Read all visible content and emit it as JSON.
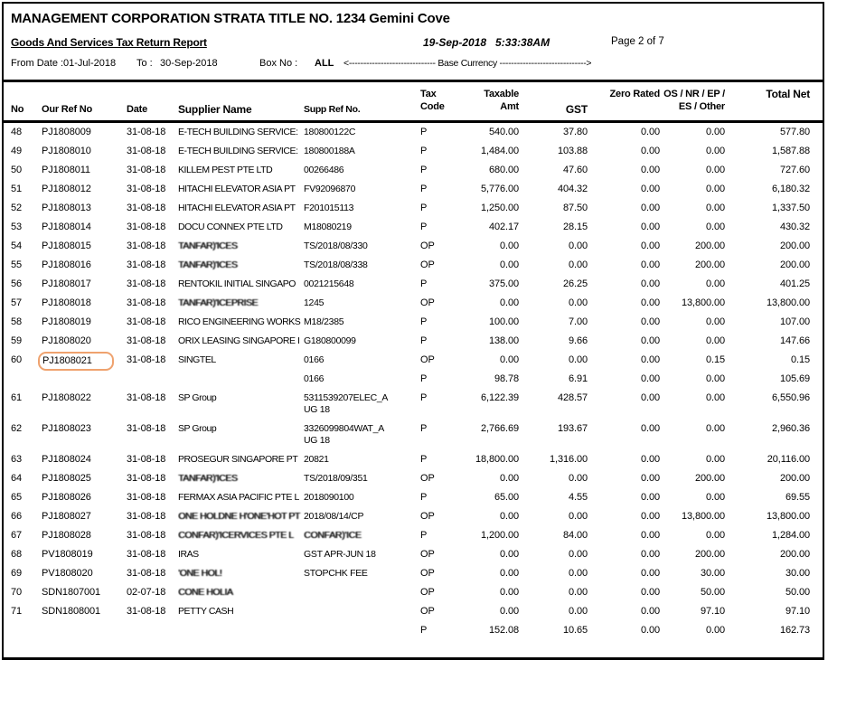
{
  "page": {
    "title": "MANAGEMENT CORPORATION STRATA TITLE NO. 1234 Gemini Cove",
    "report_name": "Goods And Services Tax Return Report",
    "printed_date": "19-Sep-2018",
    "printed_time": "5:33:38AM",
    "page_indicator": "Page 2 of 7",
    "from_label": "From Date :",
    "from_date": "01-Jul-2018",
    "to_label": "To :",
    "to_date": "30-Sep-2018",
    "box_label": "Box No :",
    "box_value": "ALL",
    "base_currency_line": "<------------------------------ Base Currency ------------------------------>"
  },
  "annotations": {
    "highlighted_ref": "PJ1808021",
    "highlight_color": "#efa26e"
  },
  "table": {
    "headers": {
      "no": "No",
      "our_ref": "Our Ref No",
      "date": "Date",
      "supplier": "Supplier Name",
      "supp_ref": "Supp Ref No.",
      "tax": "Tax\nCode",
      "taxable": "Taxable\nAmt",
      "gst": "GST",
      "zero": "Zero Rated",
      "os": "OS / NR / EP /\nES / Other",
      "total": "Total Net"
    },
    "rows": [
      {
        "no": "48",
        "ref": "PJ1808009",
        "date": "31-08-18",
        "supplier": "E-TECH BUILDING SERVICE:",
        "lines": [
          {
            "supp_ref": "180800122C",
            "tax": "P",
            "taxable": "540.00",
            "gst": "37.80",
            "zero": "0.00",
            "os": "0.00",
            "total": "577.80"
          }
        ]
      },
      {
        "no": "49",
        "ref": "PJ1808010",
        "date": "31-08-18",
        "supplier": "E-TECH BUILDING SERVICE:",
        "lines": [
          {
            "supp_ref": "180800188A",
            "tax": "P",
            "taxable": "1,484.00",
            "gst": "103.88",
            "zero": "0.00",
            "os": "0.00",
            "total": "1,587.88"
          }
        ]
      },
      {
        "no": "50",
        "ref": "PJ1808011",
        "date": "31-08-18",
        "supplier": "KILLEM PEST PTE LTD",
        "lines": [
          {
            "supp_ref": "00266486",
            "tax": "P",
            "taxable": "680.00",
            "gst": "47.60",
            "zero": "0.00",
            "os": "0.00",
            "total": "727.60"
          }
        ]
      },
      {
        "no": "51",
        "ref": "PJ1808012",
        "date": "31-08-18",
        "supplier": "HITACHI ELEVATOR ASIA PT",
        "lines": [
          {
            "supp_ref": "FV92096870",
            "tax": "P",
            "taxable": "5,776.00",
            "gst": "404.32",
            "zero": "0.00",
            "os": "0.00",
            "total": "6,180.32"
          }
        ]
      },
      {
        "no": "52",
        "ref": "PJ1808013",
        "date": "31-08-18",
        "supplier": "HITACHI ELEVATOR ASIA PT",
        "lines": [
          {
            "supp_ref": "F201015113",
            "tax": "P",
            "taxable": "1,250.00",
            "gst": "87.50",
            "zero": "0.00",
            "os": "0.00",
            "total": "1,337.50"
          }
        ]
      },
      {
        "no": "53",
        "ref": "PJ1808014",
        "date": "31-08-18",
        "supplier": "DOCU CONNEX PTE LTD",
        "lines": [
          {
            "supp_ref": "M18080219",
            "tax": "P",
            "taxable": "402.17",
            "gst": "28.15",
            "zero": "0.00",
            "os": "0.00",
            "total": "430.32"
          }
        ]
      },
      {
        "no": "54",
        "ref": "PJ1808015",
        "date": "31-08-18",
        "supplier": "TANFAR)'ICES",
        "supplier_redacted": true,
        "lines": [
          {
            "supp_ref": "TS/2018/08/330",
            "tax": "OP",
            "taxable": "0.00",
            "gst": "0.00",
            "zero": "0.00",
            "os": "200.00",
            "total": "200.00"
          }
        ]
      },
      {
        "no": "55",
        "ref": "PJ1808016",
        "date": "31-08-18",
        "supplier": "TANFAR)'ICES",
        "supplier_redacted": true,
        "lines": [
          {
            "supp_ref": "TS/2018/08/338",
            "tax": "OP",
            "taxable": "0.00",
            "gst": "0.00",
            "zero": "0.00",
            "os": "200.00",
            "total": "200.00"
          }
        ]
      },
      {
        "no": "56",
        "ref": "PJ1808017",
        "date": "31-08-18",
        "supplier": "RENTOKIL INITIAL SINGAPO",
        "lines": [
          {
            "supp_ref": "0021215648",
            "tax": "P",
            "taxable": "375.00",
            "gst": "26.25",
            "zero": "0.00",
            "os": "0.00",
            "total": "401.25"
          }
        ]
      },
      {
        "no": "57",
        "ref": "PJ1808018",
        "date": "31-08-18",
        "supplier": "TANFAR)'ICEPRISE",
        "supplier_redacted": true,
        "lines": [
          {
            "supp_ref": "1245",
            "tax": "OP",
            "taxable": "0.00",
            "gst": "0.00",
            "zero": "0.00",
            "os": "13,800.00",
            "total": "13,800.00"
          }
        ]
      },
      {
        "no": "58",
        "ref": "PJ1808019",
        "date": "31-08-18",
        "supplier": "RICO ENGINEERING WORKS",
        "lines": [
          {
            "supp_ref": "M18/2385",
            "tax": "P",
            "taxable": "100.00",
            "gst": "7.00",
            "zero": "0.00",
            "os": "0.00",
            "total": "107.00"
          }
        ]
      },
      {
        "no": "59",
        "ref": "PJ1808020",
        "date": "31-08-18",
        "supplier": "ORIX LEASING SINGAPORE I",
        "lines": [
          {
            "supp_ref": "G180800099",
            "tax": "P",
            "taxable": "138.00",
            "gst": "9.66",
            "zero": "0.00",
            "os": "0.00",
            "total": "147.66"
          }
        ]
      },
      {
        "no": "60",
        "ref": "PJ1808021",
        "ref_highlighted": true,
        "date": "31-08-18",
        "supplier": "SINGTEL",
        "lines": [
          {
            "supp_ref": "0166",
            "tax": "OP",
            "taxable": "0.00",
            "gst": "0.00",
            "zero": "0.00",
            "os": "0.15",
            "total": "0.15"
          },
          {
            "supp_ref": "0166",
            "tax": "P",
            "taxable": "98.78",
            "gst": "6.91",
            "zero": "0.00",
            "os": "0.00",
            "total": "105.69"
          }
        ]
      },
      {
        "no": "61",
        "ref": "PJ1808022",
        "date": "31-08-18",
        "supplier": "SP Group",
        "lines": [
          {
            "supp_ref": "5311539207ELEC_A\nUG 18",
            "tax": "P",
            "taxable": "6,122.39",
            "gst": "428.57",
            "zero": "0.00",
            "os": "0.00",
            "total": "6,550.96"
          }
        ]
      },
      {
        "no": "62",
        "ref": "PJ1808023",
        "date": "31-08-18",
        "supplier": "SP Group",
        "lines": [
          {
            "supp_ref": "3326099804WAT_A\nUG 18",
            "tax": "P",
            "taxable": "2,766.69",
            "gst": "193.67",
            "zero": "0.00",
            "os": "0.00",
            "total": "2,960.36"
          }
        ]
      },
      {
        "no": "63",
        "ref": "PJ1808024",
        "date": "31-08-18",
        "supplier": "PROSEGUR SINGAPORE PT",
        "lines": [
          {
            "supp_ref": "20821",
            "tax": "P",
            "taxable": "18,800.00",
            "gst": "1,316.00",
            "zero": "0.00",
            "os": "0.00",
            "total": "20,116.00"
          }
        ]
      },
      {
        "no": "64",
        "ref": "PJ1808025",
        "date": "31-08-18",
        "supplier": "TANFAR)'ICES",
        "supplier_redacted": true,
        "lines": [
          {
            "supp_ref": "TS/2018/09/351",
            "tax": "OP",
            "taxable": "0.00",
            "gst": "0.00",
            "zero": "0.00",
            "os": "200.00",
            "total": "200.00"
          }
        ]
      },
      {
        "no": "65",
        "ref": "PJ1808026",
        "date": "31-08-18",
        "supplier": "FERMAX ASIA PACIFIC PTE L",
        "lines": [
          {
            "supp_ref": "2018090100",
            "tax": "P",
            "taxable": "65.00",
            "gst": "4.55",
            "zero": "0.00",
            "os": "0.00",
            "total": "69.55"
          }
        ]
      },
      {
        "no": "66",
        "ref": "PJ1808027",
        "date": "31-08-18",
        "supplier": "ONE HOLDNE H'ONE'HOT PT",
        "supplier_redacted": true,
        "lines": [
          {
            "supp_ref": "2018/08/14/CP",
            "tax": "OP",
            "taxable": "0.00",
            "gst": "0.00",
            "zero": "0.00",
            "os": "13,800.00",
            "total": "13,800.00"
          }
        ]
      },
      {
        "no": "67",
        "ref": "PJ1808028",
        "date": "31-08-18",
        "supplier": "CONFAR)'ICERVICES PTE L",
        "supplier_redacted": true,
        "lines": [
          {
            "supp_ref": "CONFAR)'ICE",
            "supp_ref_redacted": true,
            "tax": "P",
            "taxable": "1,200.00",
            "gst": "84.00",
            "zero": "0.00",
            "os": "0.00",
            "total": "1,284.00"
          }
        ]
      },
      {
        "no": "68",
        "ref": "PV1808019",
        "date": "31-08-18",
        "supplier": "IRAS",
        "lines": [
          {
            "supp_ref": "GST APR-JUN 18",
            "tax": "OP",
            "taxable": "0.00",
            "gst": "0.00",
            "zero": "0.00",
            "os": "200.00",
            "total": "200.00"
          }
        ]
      },
      {
        "no": "69",
        "ref": "PV1808020",
        "date": "31-08-18",
        "supplier": "'ONE HOL!",
        "supplier_redacted": true,
        "lines": [
          {
            "supp_ref": "STOPCHK FEE",
            "tax": "OP",
            "taxable": "0.00",
            "gst": "0.00",
            "zero": "0.00",
            "os": "30.00",
            "total": "30.00"
          }
        ]
      },
      {
        "no": "70",
        "ref": "SDN1807001",
        "date": "02-07-18",
        "supplier": "CONE HOLIA",
        "supplier_redacted": true,
        "lines": [
          {
            "supp_ref": "",
            "tax": "OP",
            "taxable": "0.00",
            "gst": "0.00",
            "zero": "0.00",
            "os": "50.00",
            "total": "50.00"
          }
        ]
      },
      {
        "no": "71",
        "ref": "SDN1808001",
        "date": "31-08-18",
        "supplier": "PETTY CASH",
        "lines": [
          {
            "supp_ref": "",
            "tax": "OP",
            "taxable": "0.00",
            "gst": "0.00",
            "zero": "0.00",
            "os": "97.10",
            "total": "97.10"
          }
        ]
      },
      {
        "no": "",
        "ref": "",
        "date": "",
        "supplier": "",
        "lines": [
          {
            "supp_ref": "",
            "tax": "P",
            "taxable": "152.08",
            "gst": "10.65",
            "zero": "0.00",
            "os": "0.00",
            "total": "162.73"
          }
        ]
      }
    ]
  }
}
